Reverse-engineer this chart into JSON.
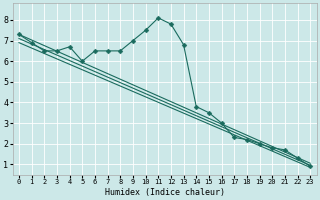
{
  "xlabel": "Humidex (Indice chaleur)",
  "ylabel": "",
  "xlim": [
    -0.5,
    23.5
  ],
  "ylim": [
    0.5,
    8.8
  ],
  "yticks": [
    1,
    2,
    3,
    4,
    5,
    6,
    7,
    8
  ],
  "xticks": [
    0,
    1,
    2,
    3,
    4,
    5,
    6,
    7,
    8,
    9,
    10,
    11,
    12,
    13,
    14,
    15,
    16,
    17,
    18,
    19,
    20,
    21,
    22,
    23
  ],
  "bg_color": "#cce8e8",
  "line_color": "#1a6b5e",
  "grid_color": "#ffffff",
  "figsize": [
    3.2,
    2.0
  ],
  "dpi": 100,
  "series": [
    {
      "x": [
        0,
        1,
        2,
        3,
        4,
        5,
        6,
        7,
        8,
        9,
        10,
        11,
        12,
        13,
        14,
        15,
        16,
        17,
        18,
        19,
        20,
        21,
        22,
        23
      ],
      "y": [
        7.3,
        6.9,
        6.5,
        6.5,
        6.7,
        6.0,
        6.5,
        6.5,
        6.5,
        7.0,
        7.5,
        8.1,
        7.8,
        6.8,
        3.8,
        3.5,
        3.0,
        2.3,
        2.2,
        2.0,
        1.8,
        1.7,
        1.3,
        0.9
      ],
      "marker": "D",
      "markersize": 2.5,
      "linewidth": 0.8
    },
    {
      "x": [
        0,
        23
      ],
      "y": [
        7.3,
        1.05
      ],
      "marker": null,
      "markersize": 0,
      "linewidth": 0.8
    },
    {
      "x": [
        0,
        23
      ],
      "y": [
        7.1,
        0.95
      ],
      "marker": null,
      "markersize": 0,
      "linewidth": 0.8
    },
    {
      "x": [
        0,
        23
      ],
      "y": [
        6.9,
        0.85
      ],
      "marker": null,
      "markersize": 0,
      "linewidth": 0.8
    }
  ]
}
